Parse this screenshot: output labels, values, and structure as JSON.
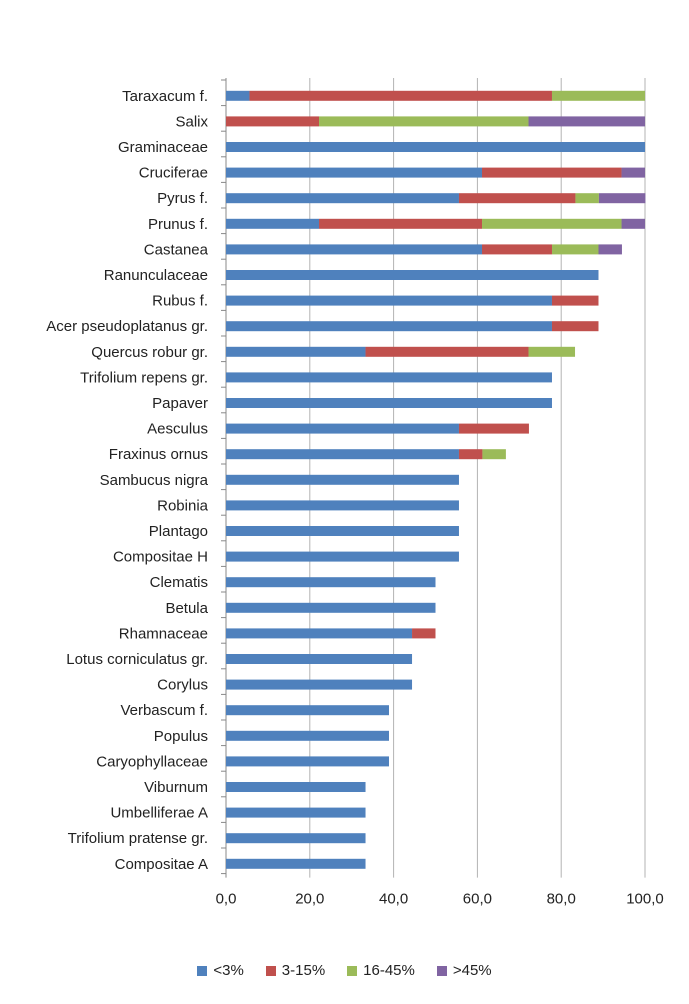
{
  "chart_data": {
    "type": "bar",
    "orientation": "horizontal",
    "stacked": true,
    "title": "",
    "xlabel": "",
    "ylabel": "",
    "xlim": [
      0,
      100
    ],
    "x_ticks": [
      "0,0",
      "20,0",
      "40,0",
      "60,0",
      "80,0",
      "100,0"
    ],
    "grid": true,
    "legend_position": "bottom",
    "categories": [
      "Taraxacum f.",
      "Salix",
      "Graminaceae",
      "Cruciferae",
      "Pyrus f.",
      "Prunus f.",
      "Castanea",
      "Ranunculaceae",
      "Rubus f.",
      "Acer pseudoplatanus gr.",
      "Quercus robur gr.",
      "Trifolium repens gr.",
      "Papaver",
      "Aesculus",
      "Fraxinus ornus",
      "Sambucus nigra",
      "Robinia",
      "Plantago",
      "Compositae  H",
      "Clematis",
      "Betula",
      "Rhamnaceae",
      "Lotus corniculatus gr.",
      "Corylus",
      "Verbascum f.",
      "Populus",
      "Caryophyllaceae",
      "Viburnum",
      "Umbelliferae A",
      "Trifolium pratense gr.",
      "Compositae A"
    ],
    "series": [
      {
        "name": "<3%",
        "color": "#4f81bd",
        "values": [
          5.6,
          0,
          100,
          61.1,
          55.6,
          22.2,
          61.1,
          88.9,
          77.8,
          77.8,
          33.3,
          77.8,
          77.8,
          55.6,
          55.6,
          55.6,
          55.6,
          55.6,
          55.6,
          50,
          50,
          44.4,
          44.4,
          44.4,
          38.9,
          38.9,
          38.9,
          33.3,
          33.3,
          33.3,
          33.3
        ]
      },
      {
        "name": "3-15%",
        "color": "#c0504d",
        "values": [
          72.2,
          22.2,
          0,
          33.3,
          27.8,
          38.9,
          16.7,
          0,
          11.1,
          11.1,
          38.9,
          0,
          0,
          16.7,
          5.6,
          0,
          0,
          0,
          0,
          0,
          0,
          5.6,
          0,
          0,
          0,
          0,
          0,
          0,
          0,
          0,
          0
        ]
      },
      {
        "name": "16-45%",
        "color": "#9bbb59",
        "values": [
          22.2,
          50,
          0,
          0,
          5.6,
          33.3,
          11.1,
          0,
          0,
          0,
          11.1,
          0,
          0,
          0,
          5.6,
          0,
          0,
          0,
          0,
          0,
          0,
          0,
          0,
          0,
          0,
          0,
          0,
          0,
          0,
          0,
          0
        ]
      },
      {
        "name": ">45%",
        "color": "#8064a2",
        "values": [
          0,
          27.8,
          0,
          5.6,
          11.1,
          5.6,
          5.6,
          0,
          0,
          0,
          0,
          0,
          0,
          0,
          0,
          0,
          0,
          0,
          0,
          0,
          0,
          0,
          0,
          0,
          0,
          0,
          0,
          0,
          0,
          0,
          0
        ]
      }
    ]
  }
}
